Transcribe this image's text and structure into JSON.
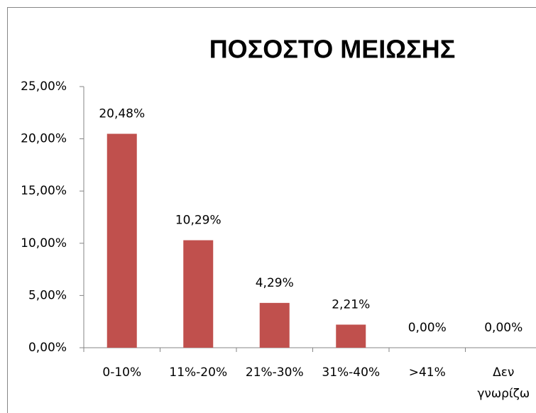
{
  "chart_data": {
    "type": "bar",
    "title": "ΠΟΣΟΣΤΟ ΜΕΙΩΣΗΣ",
    "categories": [
      "0-10%",
      "11%-20%",
      "21%-30%",
      "31%-40%",
      ">41%",
      "Δεν γνωρίζω"
    ],
    "values": [
      20.48,
      10.29,
      4.29,
      2.21,
      0,
      0
    ],
    "value_labels": [
      "20,48%",
      "10,29%",
      "4,29%",
      "2,21%",
      "0,00%",
      "0,00%"
    ],
    "color": "#c0504d",
    "ylim": [
      0,
      25
    ],
    "yticks": [
      {
        "value": 0,
        "label": "0,00%"
      },
      {
        "value": 5,
        "label": "5,00%"
      },
      {
        "value": 10,
        "label": "10,00%"
      },
      {
        "value": 15,
        "label": "15,00%"
      },
      {
        "value": 20,
        "label": "20,00%"
      },
      {
        "value": 25,
        "label": "25,00%"
      }
    ],
    "grid": false
  }
}
